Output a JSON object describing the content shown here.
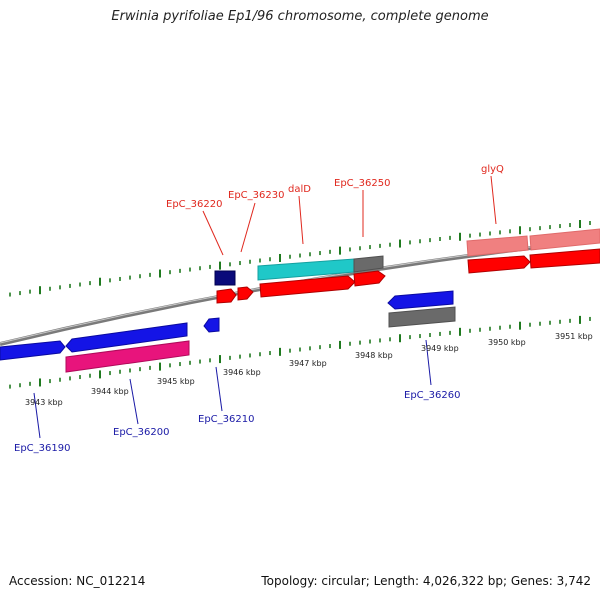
{
  "title": "Erwinia pyrifoliae Ep1/96 chromosome, complete genome",
  "footer": {
    "accession": "Accession: NC_012214",
    "summary": "Topology: circular; Length: 4,026,322 bp; Genes: 3,742"
  },
  "scale_labels": [
    "3943 kbp",
    "3944 kbp",
    "3945 kbp",
    "3946 kbp",
    "3947 kbp",
    "3948 kbp",
    "3949 kbp",
    "3950 kbp",
    "3951 kbp"
  ],
  "gene_labels_top": [
    "EpC_36220",
    "EpC_36230",
    "dalD",
    "EpC_36250",
    "glyQ"
  ],
  "gene_labels_bottom": [
    "EpC_36190",
    "EpC_36200",
    "EpC_36210",
    "EpC_36260"
  ],
  "colors": {
    "forward_cds": "#ff0000",
    "reverse_cds": "#1414e6",
    "backbone": "#8a8a8a",
    "tick": "#1f7a1f",
    "cyan": "#1fc8c8",
    "pink": "#e8147c",
    "salmon": "#f08080",
    "navy": "#0a0a7a",
    "grey": "#6a6a6a"
  }
}
